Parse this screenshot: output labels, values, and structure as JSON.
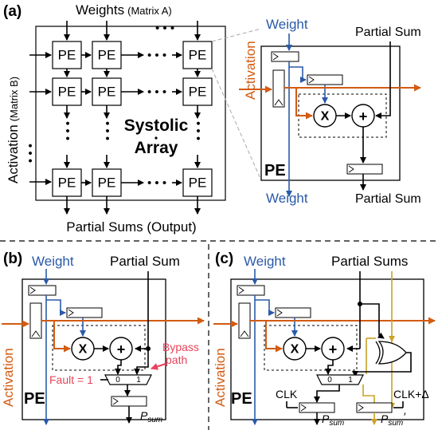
{
  "panel_a": {
    "tag": "(a)",
    "weights_label": "Weights",
    "weights_sub": "(Matrix A)",
    "activation_label": "Activation",
    "activation_sub": "(Matrix B)",
    "pe_label": "PE",
    "dots": "• • •",
    "array_line1": "Systolic",
    "array_line2": "Array",
    "output_label": "Partial Sums (Output)",
    "detail": {
      "weight_top": "Weight",
      "weight_bottom": "Weight",
      "partial_sum_top": "Partial Sum",
      "partial_sum_bottom": "Partial Sum",
      "activation": "Activation",
      "multiply": "X",
      "add": "+",
      "pe_tag": "PE"
    }
  },
  "panel_b": {
    "tag": "(b)",
    "weight": "Weight",
    "partial_sum": "Partial Sum",
    "activation": "Activation",
    "multiply": "X",
    "add": "+",
    "bypass_line1": "Bypass",
    "bypass_line2": "path",
    "fault": "Fault = 1",
    "mux0": "0",
    "mux1": "1",
    "pe_tag": "PE",
    "p_sum": "P",
    "p_sum_sub": "sum"
  },
  "panel_c": {
    "tag": "(c)",
    "weight": "Weight",
    "partial_sums": "Partial Sums",
    "activation": "Activation",
    "multiply": "X",
    "add": "+",
    "mux0": "0",
    "mux1": "1",
    "clk": "CLK",
    "clk_delta": "CLK+Δ",
    "pe_tag": "PE",
    "p_sum": "P",
    "p_sum_sub": "sum",
    "p_sum2": "P",
    "p_sum2_sub": "sum",
    "prime": "′"
  },
  "colors": {
    "weight": "#2a5aa8",
    "activation": "#d35b12",
    "bypass": "#e8435a",
    "delayed": "#c9a227"
  }
}
